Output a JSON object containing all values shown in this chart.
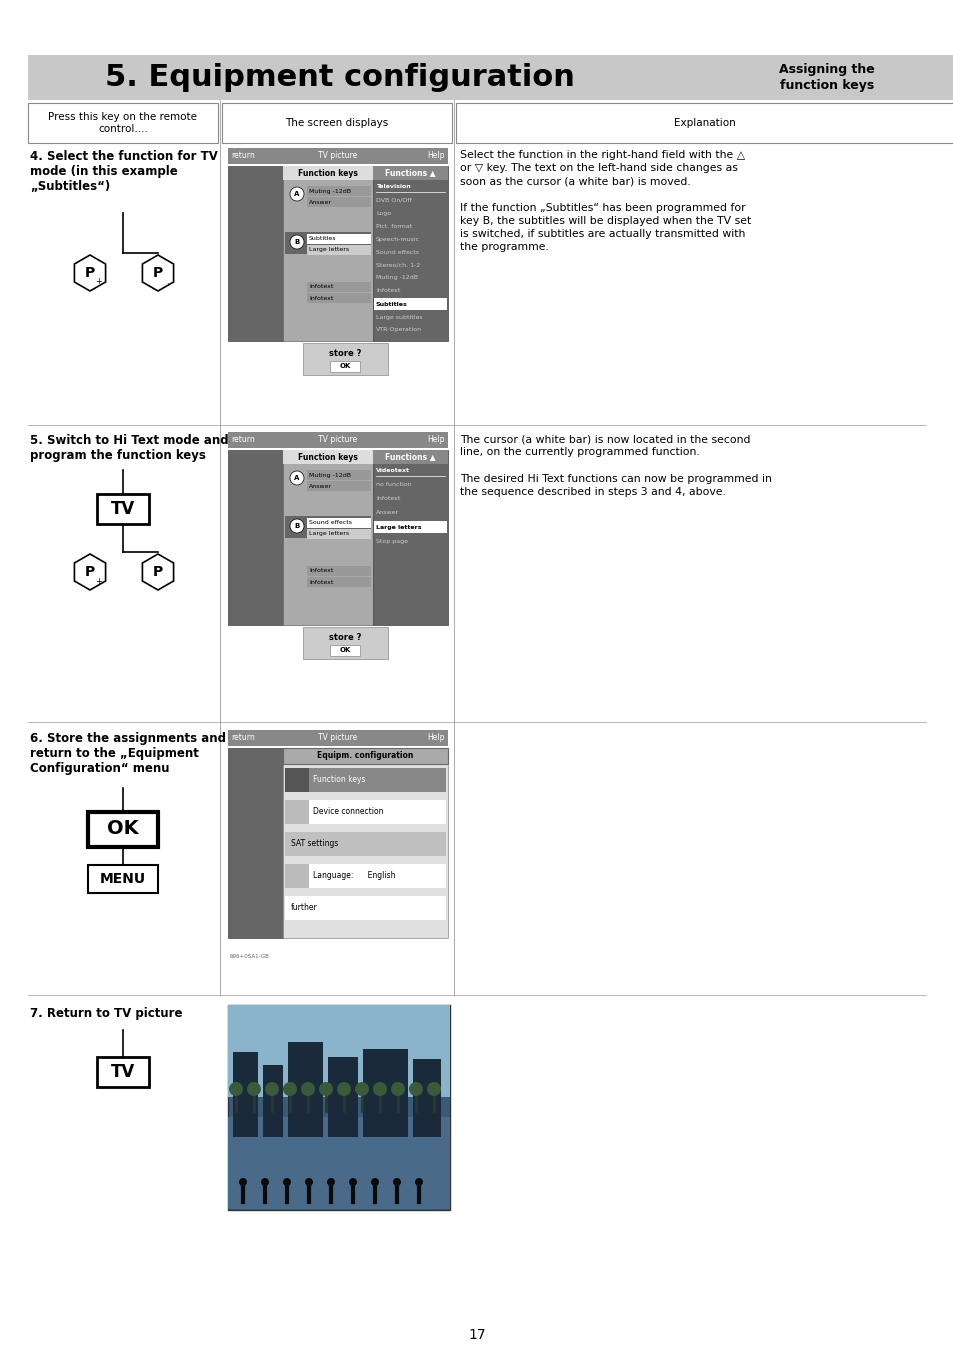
{
  "title": "5. Equipment configuration",
  "subtitle_right": "Assigning the\nfunction keys",
  "bg_header": "#c8c8c8",
  "page_number": "17",
  "col1_header": "Press this key on the remote\ncontrol....",
  "col2_header": "The screen displays",
  "col3_header": "Explanation",
  "step4_title": "4. Select the function for TV\nmode (in this example\n„Subtitles“)",
  "step4_text": "Select the function in the right-hand field with the △\nor ▽ key. The text on the left-hand side changes as\nsoon as the cursor (a white bar) is moved.\n\nIf the function „Subtitles“ has been programmed for\nkey B, the subtitles will be displayed when the TV set\nis switched, if subtitles are actually transmitted with\nthe programme.",
  "step5_title": "5. Switch to Hi Text mode and\nprogram the function keys",
  "step5_text": "The cursor (a white bar) is now located in the second\nline, on the currently programmed function.\n\nThe desired Hi Text functions can now be programmed in\nthe sequence described in steps 3 and 4, above.",
  "step6_title": "6. Store the assignments and\nreturn to the „Equipment\nConfiguration“ menu",
  "step7_title": "7. Return to TV picture"
}
